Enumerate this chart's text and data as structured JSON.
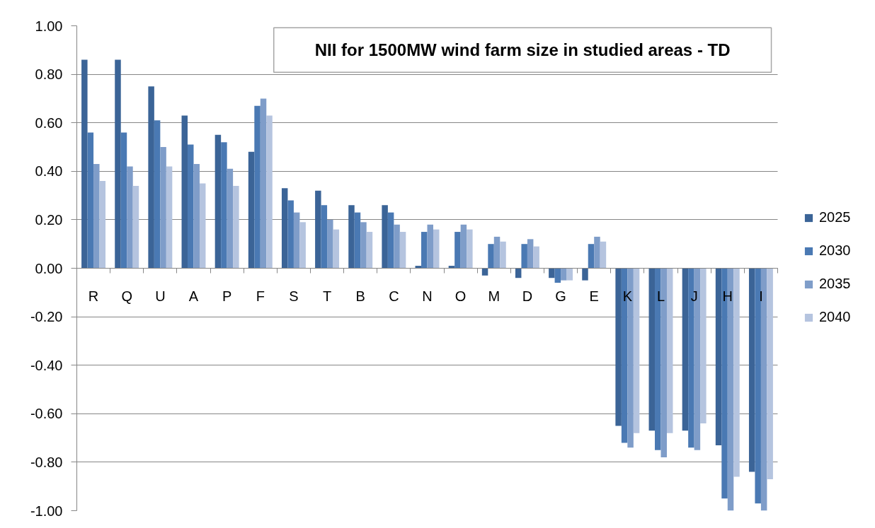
{
  "chart_data": {
    "type": "bar",
    "title": "NII for 1500MW wind farm size in studied areas - TD",
    "categories": [
      "R",
      "Q",
      "U",
      "A",
      "P",
      "F",
      "S",
      "T",
      "B",
      "C",
      "N",
      "O",
      "M",
      "D",
      "G",
      "E",
      "K",
      "L",
      "J",
      "H",
      "I"
    ],
    "series": [
      {
        "name": "2025",
        "color": "#3b6497",
        "values": [
          0.86,
          0.86,
          0.75,
          0.63,
          0.55,
          0.48,
          0.33,
          0.32,
          0.26,
          0.26,
          0.01,
          0.01,
          -0.03,
          -0.04,
          -0.04,
          -0.05,
          -0.65,
          -0.67,
          -0.67,
          -0.73,
          -0.84
        ]
      },
      {
        "name": "2030",
        "color": "#4a79b3",
        "values": [
          0.56,
          0.56,
          0.61,
          0.51,
          0.52,
          0.67,
          0.28,
          0.26,
          0.23,
          0.23,
          0.15,
          0.15,
          0.1,
          0.1,
          -0.06,
          0.1,
          -0.72,
          -0.75,
          -0.74,
          -0.95,
          -0.97
        ]
      },
      {
        "name": "2035",
        "color": "#7f9dc9",
        "values": [
          0.43,
          0.42,
          0.5,
          0.43,
          0.41,
          0.7,
          0.23,
          0.2,
          0.19,
          0.18,
          0.18,
          0.18,
          0.13,
          0.12,
          -0.05,
          0.13,
          -0.74,
          -0.78,
          -0.75,
          -1.0,
          -1.0
        ]
      },
      {
        "name": "2040",
        "color": "#b5c4df",
        "values": [
          0.36,
          0.34,
          0.42,
          0.35,
          0.34,
          0.63,
          0.19,
          0.16,
          0.15,
          0.15,
          0.16,
          0.16,
          0.11,
          0.09,
          -0.05,
          0.11,
          -0.68,
          -0.68,
          -0.64,
          -0.86,
          -0.87
        ]
      }
    ],
    "ylim": [
      -1,
      1
    ],
    "yticks": [
      {
        "value": -1,
        "label": "-1.00"
      },
      {
        "value": -0.8,
        "label": "-0.80"
      },
      {
        "value": -0.6,
        "label": "-0.60"
      },
      {
        "value": -0.4,
        "label": "-0.40"
      },
      {
        "value": -0.2,
        "label": "-0.20"
      },
      {
        "value": 0,
        "label": "0.00"
      },
      {
        "value": 0.2,
        "label": "0.20"
      },
      {
        "value": 0.4,
        "label": "0.40"
      },
      {
        "value": 0.6,
        "label": "0.60"
      },
      {
        "value": 0.8,
        "label": "0.80"
      },
      {
        "value": 1,
        "label": "1.00"
      }
    ],
    "grid": "y",
    "legend": "right"
  }
}
